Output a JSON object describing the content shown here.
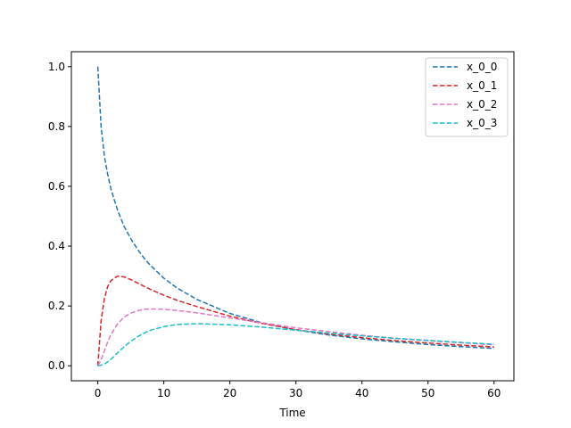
{
  "chart_data": {
    "type": "line",
    "title": "",
    "xlabel": "Time",
    "ylabel": "",
    "xlim": [
      -4,
      63
    ],
    "ylim": [
      -0.05,
      1.05
    ],
    "xticks": [
      0,
      10,
      20,
      30,
      40,
      50,
      60
    ],
    "yticks": [
      0.0,
      0.2,
      0.4,
      0.6,
      0.8,
      1.0
    ],
    "xtick_labels": [
      "0",
      "10",
      "20",
      "30",
      "40",
      "50",
      "60"
    ],
    "ytick_labels": [
      "0.0",
      "0.2",
      "0.4",
      "0.6",
      "0.8",
      "1.0"
    ],
    "grid": false,
    "legend_position": "top-right",
    "line_style": "dashed",
    "x": [
      0,
      0.5,
      1,
      1.5,
      2,
      3,
      4,
      5,
      6,
      7,
      8,
      10,
      12,
      15,
      20,
      25,
      30,
      35,
      40,
      45,
      50,
      55,
      60
    ],
    "series": [
      {
        "name": "x_0_0",
        "color": "#1f77b4",
        "values": [
          1.0,
          0.8,
          0.7,
          0.64,
          0.59,
          0.52,
          0.465,
          0.425,
          0.39,
          0.36,
          0.335,
          0.293,
          0.26,
          0.222,
          0.175,
          0.143,
          0.12,
          0.103,
          0.09,
          0.08,
          0.071,
          0.064,
          0.058
        ]
      },
      {
        "name": "x_0_1",
        "color": "#d62728",
        "values": [
          0.0,
          0.15,
          0.225,
          0.265,
          0.285,
          0.3,
          0.297,
          0.288,
          0.277,
          0.266,
          0.255,
          0.236,
          0.219,
          0.198,
          0.166,
          0.141,
          0.121,
          0.106,
          0.094,
          0.084,
          0.076,
          0.069,
          0.063
        ]
      },
      {
        "name": "x_0_2",
        "color": "#e377c2",
        "values": [
          0.0,
          0.02,
          0.05,
          0.08,
          0.105,
          0.14,
          0.163,
          0.176,
          0.184,
          0.189,
          0.19,
          0.189,
          0.185,
          0.177,
          0.16,
          0.143,
          0.127,
          0.114,
          0.102,
          0.092,
          0.084,
          0.077,
          0.07
        ]
      },
      {
        "name": "x_0_3",
        "color": "#17becf",
        "values": [
          0.0,
          0.002,
          0.006,
          0.013,
          0.022,
          0.043,
          0.064,
          0.082,
          0.097,
          0.109,
          0.119,
          0.131,
          0.138,
          0.141,
          0.137,
          0.129,
          0.119,
          0.109,
          0.1,
          0.092,
          0.085,
          0.078,
          0.072
        ]
      }
    ]
  }
}
